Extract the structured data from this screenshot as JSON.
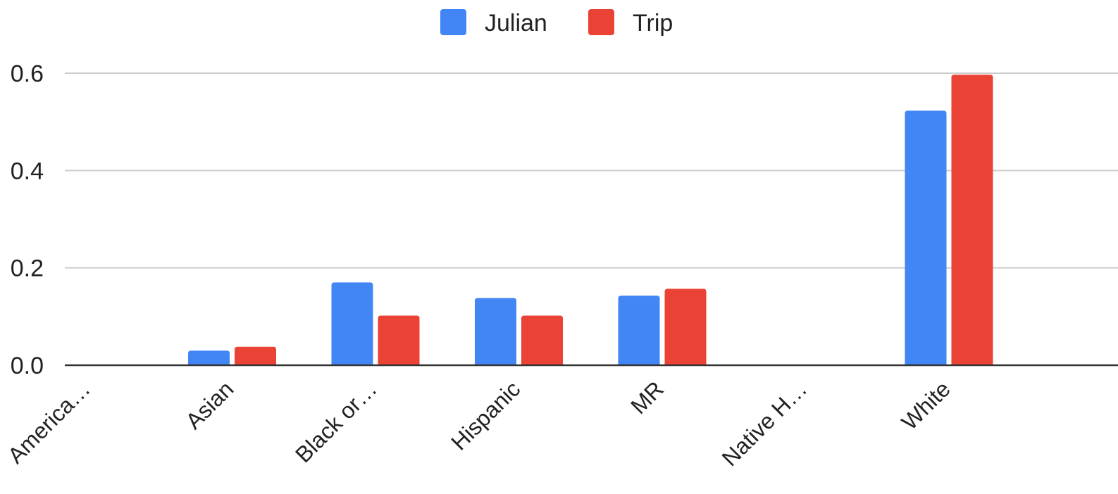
{
  "chart_data": {
    "type": "bar",
    "categories": [
      "America…",
      "Asian",
      "Black or…",
      "Hispanic",
      "MR",
      "Native H…",
      "White"
    ],
    "series": [
      {
        "name": "Julian",
        "color": "#4285F4",
        "values": [
          0.0,
          0.03,
          0.17,
          0.138,
          0.143,
          0.0,
          0.523
        ]
      },
      {
        "name": "Trip",
        "color": "#EA4335",
        "values": [
          0.0,
          0.038,
          0.102,
          0.102,
          0.157,
          0.0,
          0.597
        ]
      }
    ],
    "y_ticks": [
      "0.0",
      "0.2",
      "0.4",
      "0.6"
    ],
    "y_tick_values": [
      0,
      0.2,
      0.4,
      0.6
    ],
    "ylim": [
      0,
      0.6
    ],
    "grid": true,
    "legend_position": "top-center",
    "title": "",
    "xlabel": "",
    "ylabel": ""
  }
}
